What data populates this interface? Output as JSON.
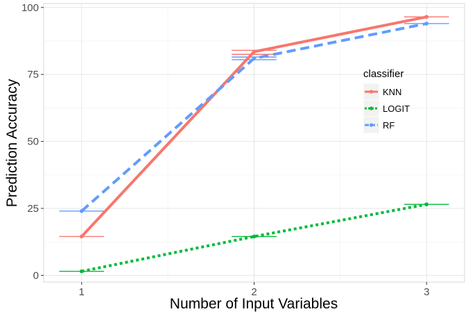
{
  "chart_data": {
    "type": "line",
    "xlabel": "Number of Input Variables",
    "ylabel": "Prediction Accuracy",
    "x": [
      1,
      2,
      3
    ],
    "x_ticks": [
      "1",
      "2",
      "3"
    ],
    "y_ticks": [
      "0",
      "25",
      "50",
      "75",
      "100"
    ],
    "xlim": [
      0.78,
      3.22
    ],
    "ylim": [
      -2.5,
      101.5
    ],
    "grid": true,
    "legend_title": "classifier",
    "legend_position": "right-center",
    "series": [
      {
        "name": "KNN",
        "color": "#F8766D",
        "linestyle": "solid",
        "values": [
          14.5,
          83.5,
          96.5
        ],
        "err_low": [
          14.5,
          82.5,
          96.5
        ],
        "err_high": [
          14.5,
          84.0,
          96.5
        ]
      },
      {
        "name": "LOGIT",
        "color": "#00BA38",
        "linestyle": "dotted",
        "values": [
          1.5,
          14.5,
          26.5
        ],
        "err_low": [
          1.5,
          14.5,
          26.5
        ],
        "err_high": [
          1.5,
          14.5,
          26.5
        ]
      },
      {
        "name": "RF",
        "color": "#619CFF",
        "linestyle": "dashed",
        "values": [
          24.0,
          81.0,
          94.0
        ],
        "err_low": [
          24.0,
          80.5,
          94.0
        ],
        "err_high": [
          24.0,
          81.5,
          94.0
        ]
      }
    ]
  }
}
